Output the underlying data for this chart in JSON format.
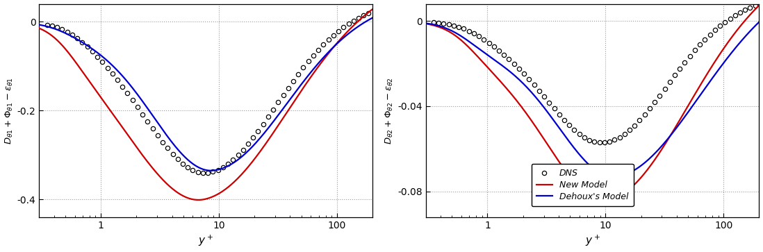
{
  "fig_width": 10.98,
  "fig_height": 3.63,
  "dpi": 100,
  "panel1": {
    "ylabel": "$D_{\\theta 1} + \\Phi_{\\theta 1} - \\varepsilon_{\\theta 1}$",
    "xlabel": "$y^+$",
    "xlim": [
      0.3,
      200
    ],
    "ylim": [
      -0.44,
      0.04
    ],
    "yticks": [
      0,
      -0.2,
      -0.4
    ],
    "grid_color": "#999999"
  },
  "panel2": {
    "ylabel": "$D_{\\theta 2} + \\Phi_{\\theta 2} - \\varepsilon_{\\theta 2}$",
    "xlabel": "$y^+$",
    "xlim": [
      0.3,
      200
    ],
    "ylim": [
      -0.092,
      0.008
    ],
    "yticks": [
      0,
      -0.04,
      -0.08
    ],
    "grid_color": "#999999",
    "legend_labels": [
      "DNS",
      "New Model",
      "Dehoux's Model"
    ]
  },
  "red": "#cc0000",
  "blue": "#0000cc"
}
